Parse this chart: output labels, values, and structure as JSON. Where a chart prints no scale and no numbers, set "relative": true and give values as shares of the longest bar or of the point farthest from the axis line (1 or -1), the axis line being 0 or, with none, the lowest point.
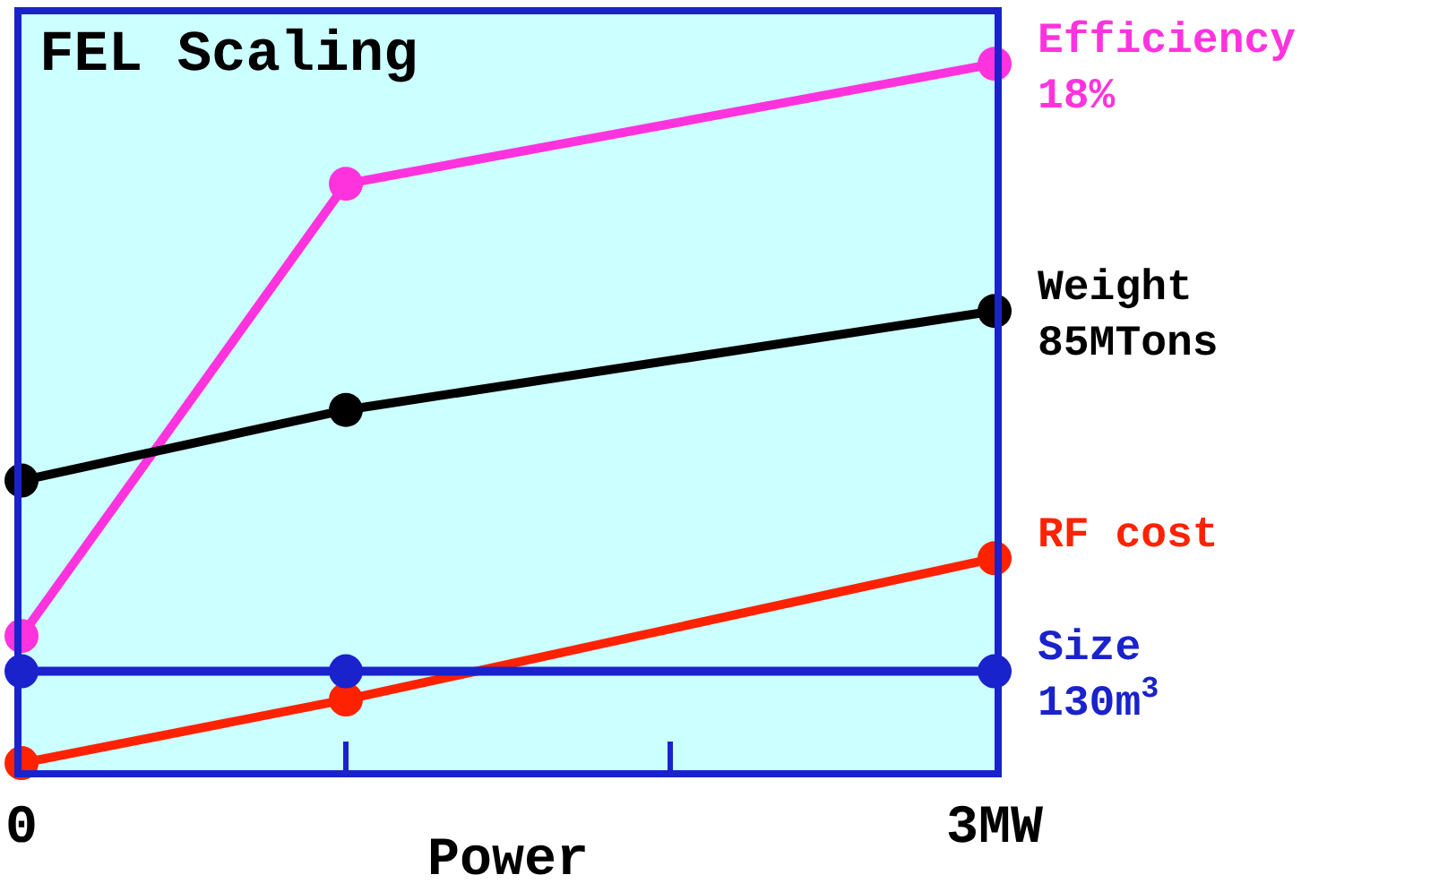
{
  "chart_data": {
    "type": "line",
    "title": "FEL Scaling",
    "xlabel": "Power",
    "relative": true,
    "marker": "circle",
    "line_style": "solid",
    "grid": false,
    "legend": false,
    "x": [
      0,
      1,
      3
    ],
    "xlim": [
      0,
      3
    ],
    "xticks": [
      {
        "value": 0,
        "label": "0"
      },
      {
        "value": 1,
        "label": null
      },
      {
        "value": 2,
        "label": null
      },
      {
        "value": 3,
        "label": "3MW"
      }
    ],
    "series": [
      {
        "name": "Efficiency\n18%",
        "color": "#ff33dd",
        "values": [
          0.19,
          0.83,
          1
        ]
      },
      {
        "name": "Weight\n85MTons",
        "color": "#000000",
        "values": [
          0.41,
          0.51,
          0.65
        ]
      },
      {
        "name": "RF cost",
        "color": "#ff2200",
        "values": [
          0.01,
          0.1,
          0.3
        ]
      },
      {
        "name": "Size\n130m$^{3}$",
        "color": "#1a22cc",
        "values": [
          0.14,
          0.14,
          0.14
        ]
      }
    ]
  }
}
